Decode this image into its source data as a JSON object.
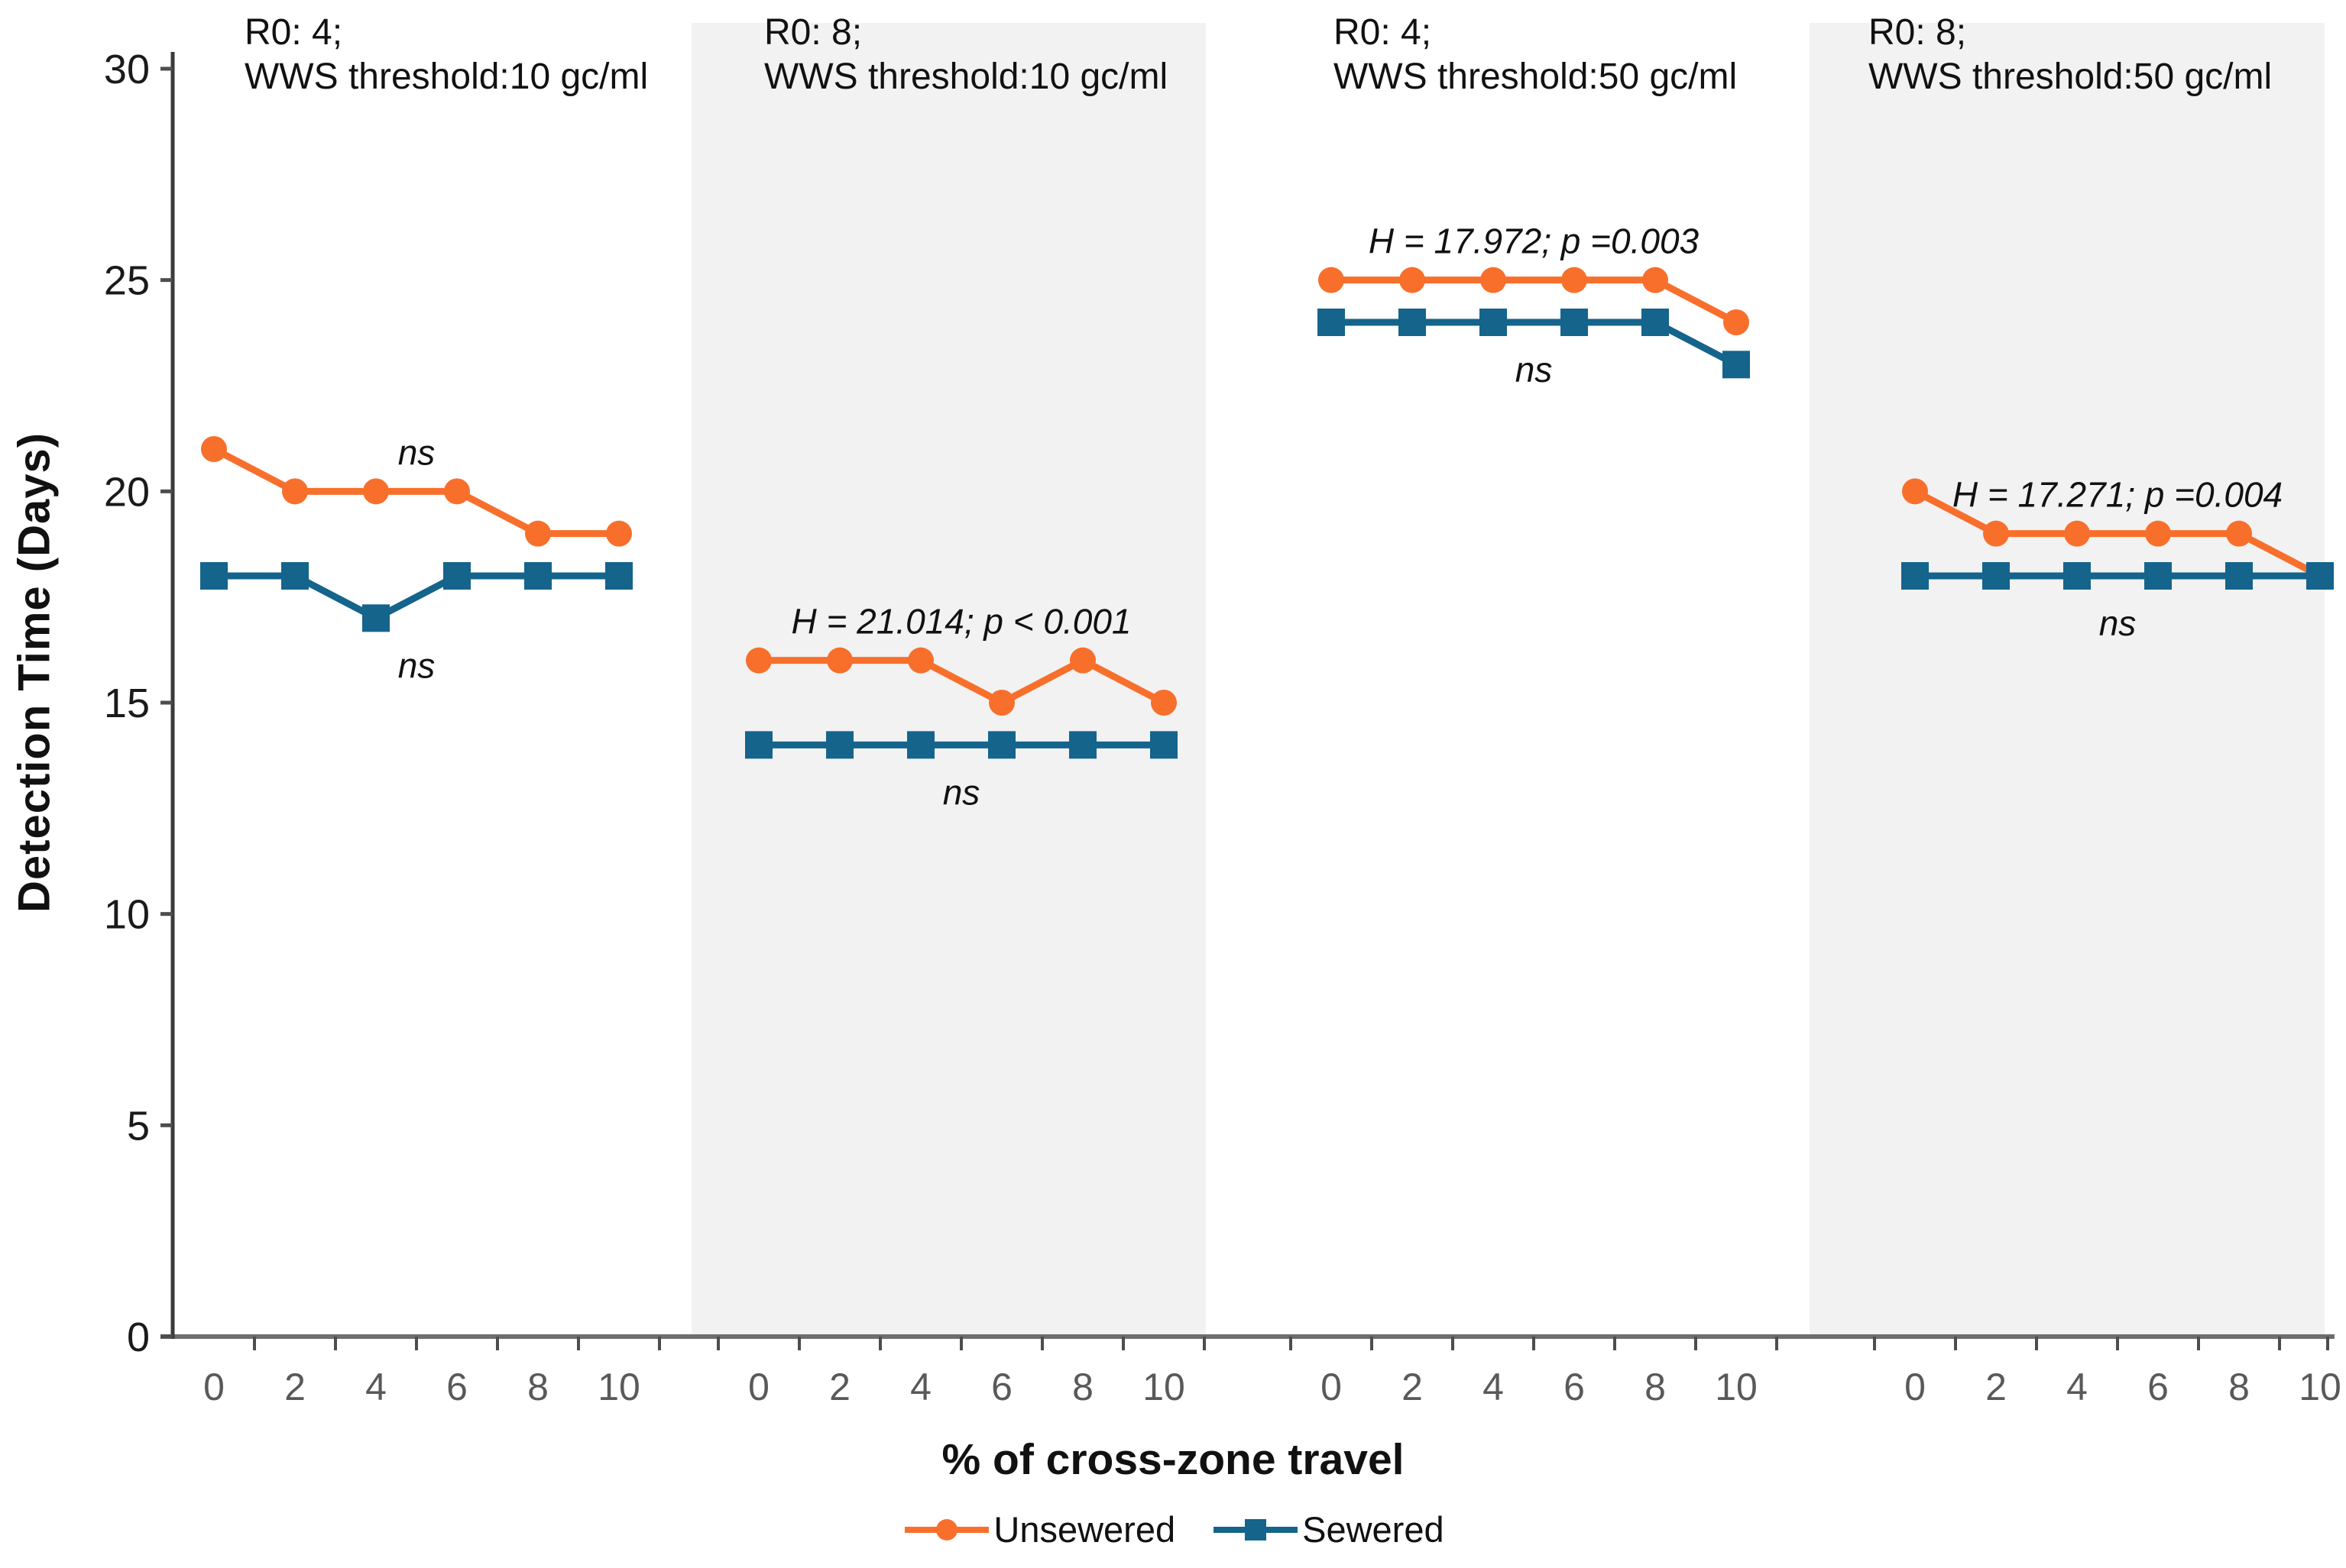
{
  "chart_data": {
    "type": "line",
    "title": "",
    "ylabel": "Detection Time (Days)",
    "xlabel": "% of cross-zone travel",
    "ylim": [
      0,
      30
    ],
    "y_ticks": [
      0,
      5,
      10,
      15,
      20,
      25,
      30
    ],
    "x_tick_labels": [
      "0",
      "2",
      "4",
      "6",
      "8",
      "10"
    ],
    "grid": false,
    "legend_position": "bottom-center",
    "colors": {
      "unsewered": "#F86F2C",
      "sewered": "#14648C",
      "band_fill": "#F2F2F2",
      "x_axis_line": "#6E6E6E",
      "y_axis_line": "#3A3A3A",
      "tick_mark": "#4D4D4D",
      "x_tick_label": "#595959",
      "y_tick_label": "#1A1A1A",
      "text": "#111111"
    },
    "legend": [
      {
        "name": "Unsewered",
        "marker": "circle",
        "color": "#F86F2C"
      },
      {
        "name": "Sewered",
        "marker": "square",
        "color": "#14648C"
      }
    ],
    "panels": [
      {
        "title_line1": "R0: 4;",
        "title_line2": "WWS threshold:10 gc/ml",
        "shaded": false,
        "x": [
          0,
          2,
          4,
          6,
          8,
          10
        ],
        "series": [
          {
            "name": "Unsewered",
            "values": [
              21,
              20,
              20,
              20,
              19,
              19
            ]
          },
          {
            "name": "Sewered",
            "values": [
              18,
              18,
              17,
              18,
              18,
              18
            ]
          }
        ],
        "annotations": [
          {
            "text": "ns",
            "series": 0,
            "position": "above"
          },
          {
            "text": "ns",
            "series": 1,
            "position": "below"
          }
        ]
      },
      {
        "title_line1": "R0: 8;",
        "title_line2": "WWS threshold:10 gc/ml",
        "shaded": true,
        "x": [
          0,
          2,
          4,
          6,
          8,
          10
        ],
        "series": [
          {
            "name": "Unsewered",
            "values": [
              16,
              16,
              16,
              15,
              16,
              15
            ]
          },
          {
            "name": "Sewered",
            "values": [
              14,
              14,
              14,
              14,
              14,
              14
            ]
          }
        ],
        "annotations": [
          {
            "text": "H = 21.014; p < 0.001",
            "series": 0,
            "position": "above"
          },
          {
            "text": "ns",
            "series": 1,
            "position": "below"
          }
        ]
      },
      {
        "title_line1": "R0: 4;",
        "title_line2": "WWS threshold:50 gc/ml",
        "shaded": false,
        "x": [
          0,
          2,
          4,
          6,
          8,
          10
        ],
        "series": [
          {
            "name": "Unsewered",
            "values": [
              25,
              25,
              25,
              25,
              25,
              24
            ]
          },
          {
            "name": "Sewered",
            "values": [
              24,
              24,
              24,
              24,
              24,
              23
            ]
          }
        ],
        "annotations": [
          {
            "text": "H = 17.972; p =0.003",
            "series": 0,
            "position": "above"
          },
          {
            "text": "ns",
            "series": 1,
            "position": "below"
          }
        ]
      },
      {
        "title_line1": "R0: 8;",
        "title_line2": "WWS threshold:50 gc/ml",
        "shaded": true,
        "x": [
          0,
          2,
          4,
          6,
          8,
          10
        ],
        "series": [
          {
            "name": "Unsewered",
            "values": [
              20,
              19,
              19,
              19,
              19,
              18
            ]
          },
          {
            "name": "Sewered",
            "values": [
              18,
              18,
              18,
              18,
              18,
              18
            ]
          }
        ],
        "annotations": [
          {
            "text": "H = 17.271; p =0.004",
            "series": 0,
            "position": "above"
          },
          {
            "text": "ns",
            "series": 1,
            "position": "below"
          }
        ]
      }
    ]
  }
}
